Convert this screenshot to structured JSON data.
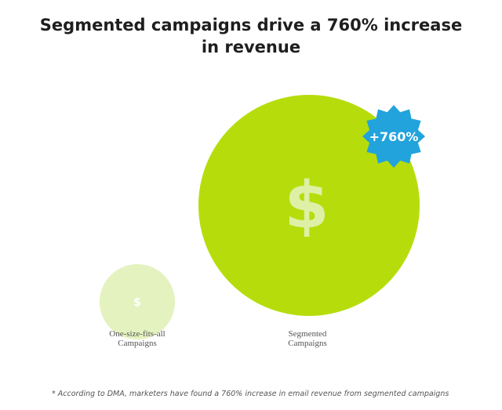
{
  "chart_data": {
    "type": "bubble",
    "title": "Segmented campaigns drive a 760% increase in revenue",
    "categories": [
      "One-size-fits-all\nCampaigns",
      "Segmented\nCampaigns"
    ],
    "values": [
      1,
      8.6
    ],
    "symbol": "$",
    "annotation": "+760%",
    "footnote": "* According to DMA, marketers have found a 760% increase in email revenue from segmented campaigns",
    "colors": {
      "bubble_small": "#e4f2c0",
      "bubble_large": "#b6dd0b",
      "dollar_large": "#ddf0a6",
      "badge": "#22a3dc"
    }
  }
}
